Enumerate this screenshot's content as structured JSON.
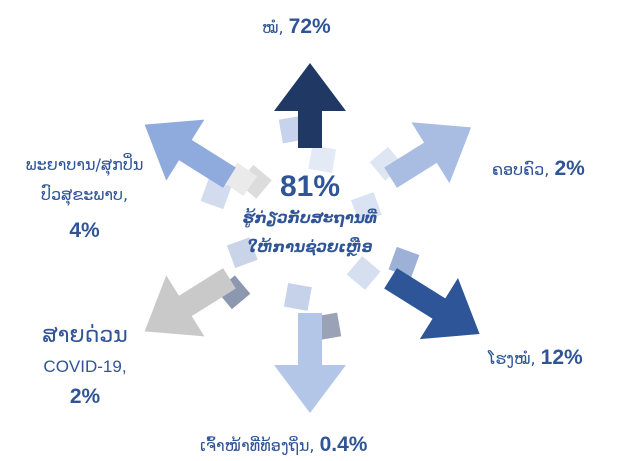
{
  "center": {
    "value": "81%",
    "text": [
      "ຮູ້ກ່ຽວກັບສະຖານທີ່",
      "ໃຫ້ການຊ່ວຍເຫຼືອ"
    ]
  },
  "items": [
    {
      "label": "ໝໍ,",
      "value": "72%"
    },
    {
      "label": "ຄອບຄົວ,",
      "value": "2%"
    },
    {
      "label": "ໂຮງໝໍ,",
      "value": "12%"
    },
    {
      "label": "ເຈົ້າໜ້າທີ່ທ້ອງຖິ່ນ,",
      "value": "0.4%"
    },
    {
      "label": [
        "ສາຍດ່ວນ",
        "COVID-19,"
      ],
      "value": "2%"
    },
    {
      "label": [
        "ພະຍາບານ/ສຸກປິ່ນ",
        "ປົວສຸຂະພາບ,"
      ],
      "value": "4%"
    }
  ]
}
